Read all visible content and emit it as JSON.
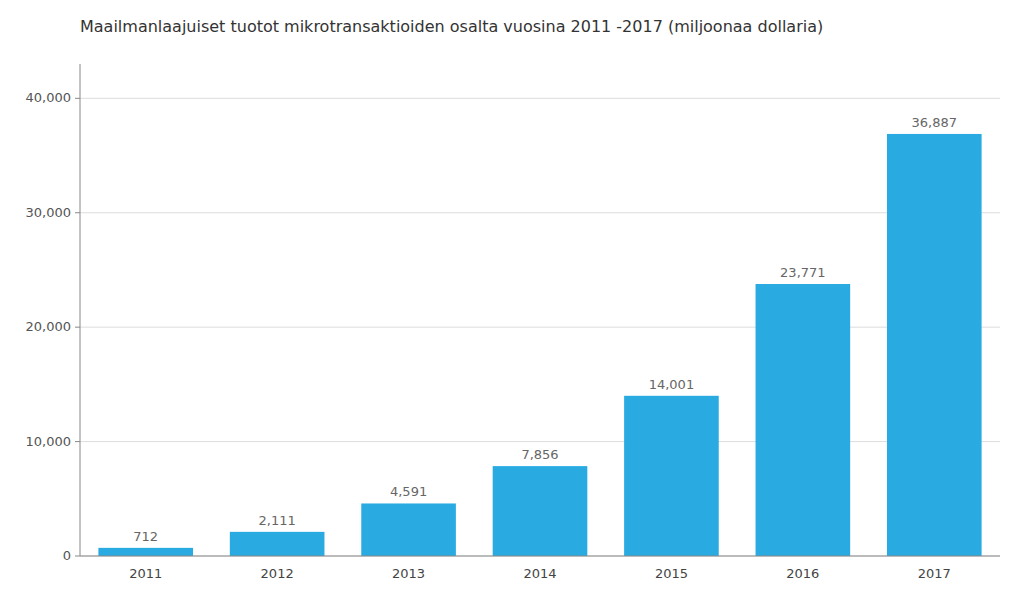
{
  "chart_data": {
    "type": "bar",
    "title": "Maailmanlaajuiset tuotot mikrotransaktioiden osalta vuosina 2011 -2017 (miljoonaa dollaria)",
    "categories": [
      "2011",
      "2012",
      "2013",
      "2014",
      "2015",
      "2016",
      "2017"
    ],
    "values": [
      712,
      2111,
      4591,
      7856,
      14001,
      23771,
      36887
    ],
    "value_labels": [
      "712",
      "2,111",
      "4,591",
      "7,856",
      "14,001",
      "23,771",
      "36,887"
    ],
    "color": "#29ABE2",
    "ylim": [
      0,
      43000
    ],
    "yticks": [
      0,
      {
        "value": 10000,
        "label": "10,000"
      },
      {
        "value": 20000,
        "label": "20,000"
      },
      {
        "value": 30000,
        "label": "30,000"
      },
      {
        "value": 40000,
        "label": "40,000"
      }
    ],
    "grid": true,
    "data_labels": true
  }
}
